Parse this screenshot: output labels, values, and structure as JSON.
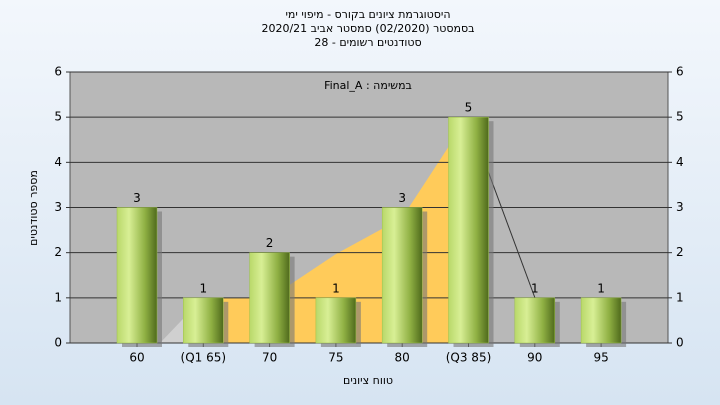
{
  "chart_data": {
    "type": "bar",
    "title": "היסטוגרמת ציונים בקורס - מיפוי ימי",
    "subtitle": "בסמסטר (02/2020) סמסטר אביב 2020/21",
    "subtitle2": "סטודנטים רשומים - 28",
    "annotation": "במשימה : Final_A",
    "x_label": "טווח ציונים",
    "y_label": "מספר סטודנטים",
    "categories": [
      "60",
      "(Q1 65)",
      "70",
      "75",
      "80",
      "(Q3 85)",
      "90",
      "95"
    ],
    "values": [
      3,
      1,
      2,
      1,
      3,
      5,
      1,
      1
    ],
    "color": "#9dc24a",
    "ylim": [
      0,
      6
    ],
    "yticks": [
      0,
      1,
      2,
      3,
      4,
      5,
      6
    ],
    "y2lim": [
      0,
      6
    ],
    "y2ticks": [
      0,
      1,
      2,
      3,
      4,
      5,
      6
    ],
    "grid": true
  }
}
